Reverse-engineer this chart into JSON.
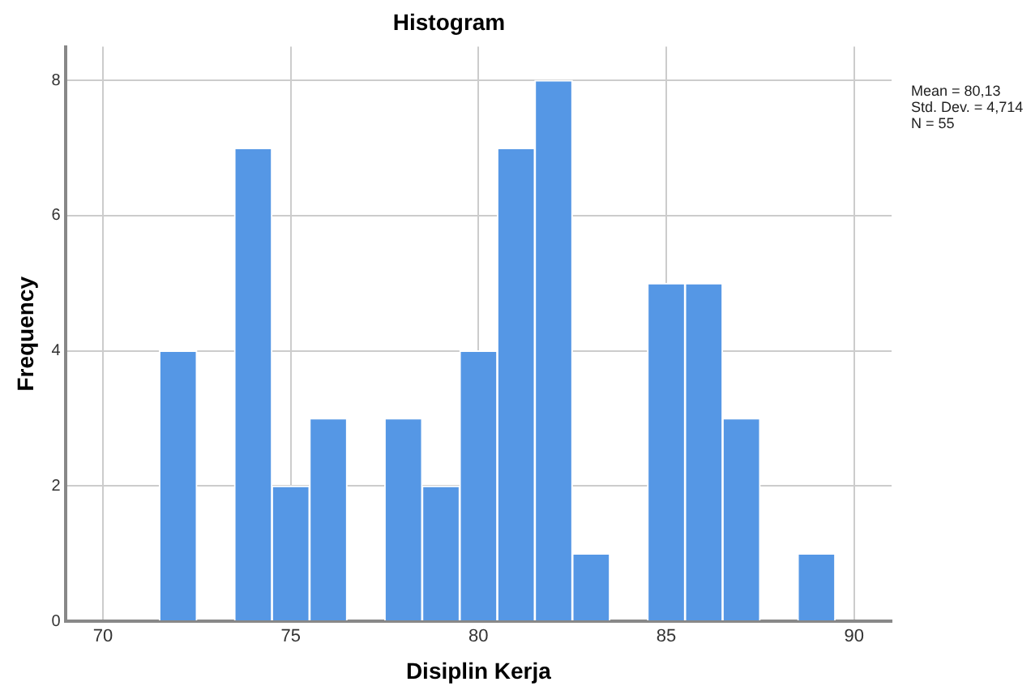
{
  "chart_data": {
    "type": "histogram",
    "title": "Histogram",
    "xlabel": "Disiplin Kerja",
    "ylabel": "Frequency",
    "bins": [
      71.5,
      72.5,
      73.5,
      74.5,
      75.5,
      76.5,
      77.5,
      78.5,
      79.5,
      80.5,
      81.5,
      82.5,
      83.5,
      84.5,
      85.5,
      86.5,
      87.5,
      88.5,
      89.5
    ],
    "values": [
      4,
      0,
      7,
      2,
      3,
      0,
      3,
      2,
      4,
      7,
      8,
      1,
      0,
      5,
      5,
      3,
      0,
      1
    ],
    "color": "#5597e5",
    "xlim": [
      69,
      91
    ],
    "xticks": [
      70,
      75,
      80,
      85,
      90
    ],
    "ylim": [
      0,
      8.5
    ],
    "yticks": [
      0,
      2,
      4,
      6,
      8
    ],
    "grid": true,
    "legend": false,
    "annotations": [
      "Mean = 80,13",
      "Std. Dev. = 4,714",
      "N = 55"
    ]
  }
}
